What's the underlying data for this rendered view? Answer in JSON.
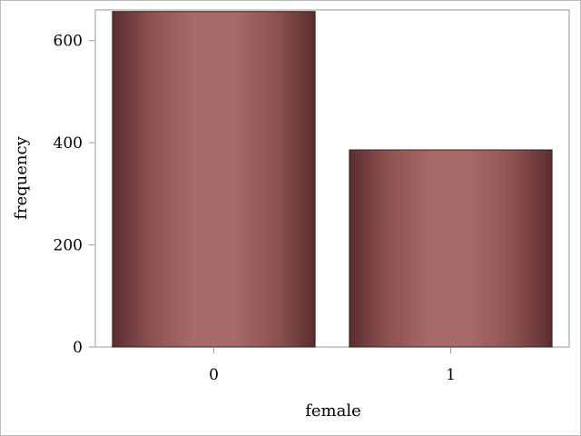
{
  "chart_data": {
    "type": "bar",
    "title": "",
    "xlabel": "female",
    "ylabel": "frequency",
    "categories": [
      "0",
      "1"
    ],
    "values": [
      657,
      386
    ],
    "ylim": [
      0,
      660
    ],
    "yticks": [
      0,
      200,
      400,
      600
    ],
    "grid": false,
    "legend": "none"
  },
  "colors": {
    "bar_edge": "#3a1e1e",
    "bar_dark": "#5b2d2d",
    "bar_light": "#a86a68",
    "axis": "#9a9a9a"
  }
}
